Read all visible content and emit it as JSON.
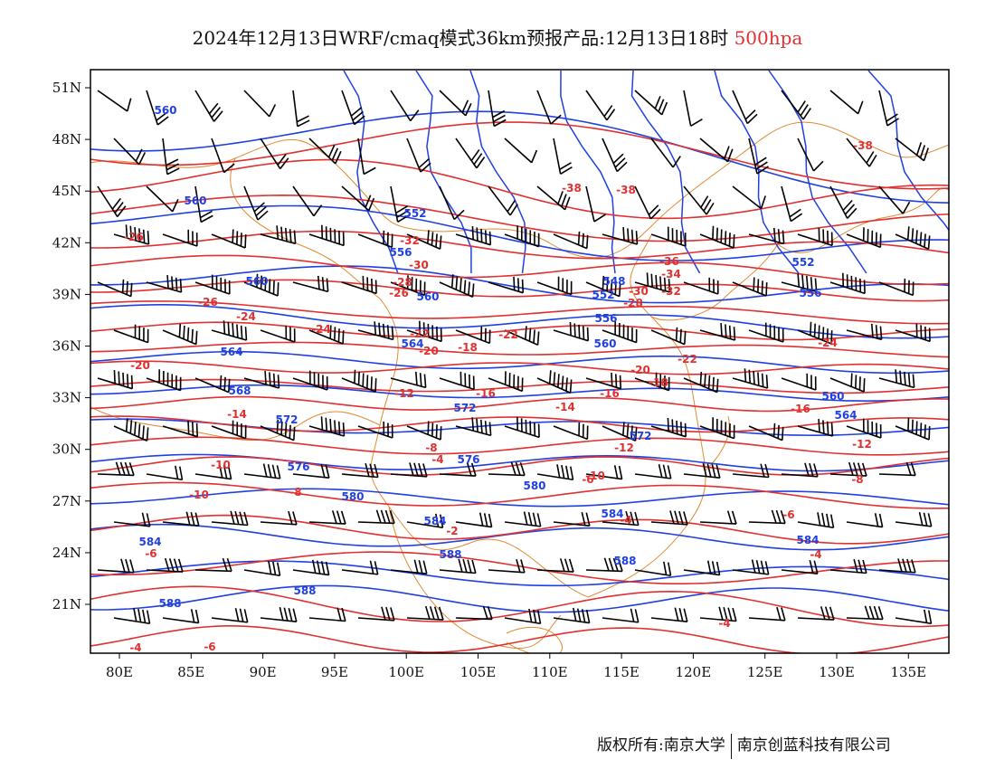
{
  "title": {
    "main": "2024年12月13日WRF/cmaq模式36km预报产品:12月13日18时",
    "level": "500hpa"
  },
  "colors": {
    "temperature": "#e03030",
    "height": "#2040e0",
    "border": "#e08a30",
    "wind": "#000000"
  },
  "axes": {
    "lat_ticks": [
      "51N",
      "48N",
      "45N",
      "42N",
      "39N",
      "36N",
      "33N",
      "30N",
      "27N",
      "24N",
      "21N"
    ],
    "lon_ticks": [
      "80E",
      "85E",
      "90E",
      "95E",
      "100E",
      "105E",
      "110E",
      "115E",
      "120E",
      "125E",
      "130E",
      "135E"
    ]
  },
  "temperature_labels": [
    "-38",
    "-38",
    "-38",
    "-36",
    "-34",
    "-32",
    "-32",
    "-30",
    "-30",
    "-28",
    "-28",
    "-26",
    "-26",
    "-26",
    "-24",
    "-24",
    "-24",
    "-22",
    "-22",
    "-22",
    "-20",
    "-20",
    "-20",
    "-18",
    "-18",
    "-16",
    "-16",
    "-16",
    "-14",
    "-14",
    "-12",
    "-12",
    "-12",
    "-10",
    "-10",
    "-10",
    "-8",
    "-8",
    "-8",
    "-6",
    "-6",
    "-6",
    "-6",
    "-4",
    "-4",
    "-4",
    "-4",
    "-2",
    "-4"
  ],
  "height_labels": [
    "560",
    "560",
    "552",
    "556",
    "560",
    "560",
    "548",
    "552",
    "556",
    "564",
    "560",
    "564",
    "568",
    "572",
    "576",
    "580",
    "584",
    "584",
    "588",
    "588",
    "588",
    "588",
    "552",
    "556",
    "560",
    "564",
    "572",
    "572",
    "576",
    "580",
    "584",
    "584"
  ],
  "footer": {
    "left": "版权所有:南京大学",
    "right": "南京创蓝科技有限公司"
  }
}
